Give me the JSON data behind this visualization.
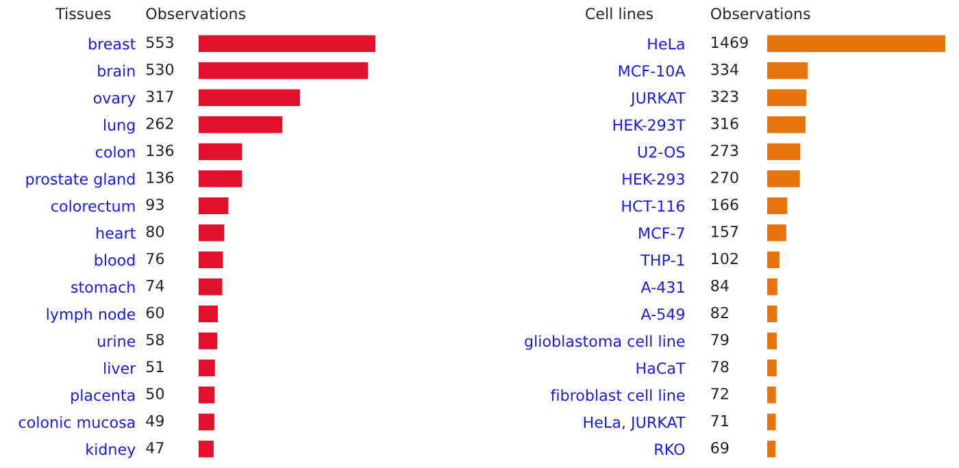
{
  "chart_data": [
    {
      "type": "bar",
      "orientation": "horizontal",
      "ylabel": "Tissues",
      "xlabel": "Observations",
      "data_labels": true,
      "color": "#e3102b",
      "categories": [
        "breast",
        "brain",
        "ovary",
        "lung",
        "colon",
        "prostate gland",
        "colorectum",
        "heart",
        "blood",
        "stomach",
        "lymph node",
        "urine",
        "liver",
        "placenta",
        "colonic mucosa",
        "kidney"
      ],
      "values": [
        553,
        530,
        317,
        262,
        136,
        136,
        93,
        80,
        76,
        74,
        60,
        58,
        51,
        50,
        49,
        47
      ]
    },
    {
      "type": "bar",
      "orientation": "horizontal",
      "ylabel": "Cell lines",
      "xlabel": "Observations",
      "data_labels": true,
      "color": "#e8740c",
      "categories": [
        "HeLa",
        "MCF-10A",
        "JURKAT",
        "HEK-293T",
        "U2-OS",
        "HEK-293",
        "HCT-116",
        "MCF-7",
        "THP-1",
        "A-431",
        "A-549",
        "glioblastoma cell line",
        "HaCaT",
        "fibroblast cell line",
        "HeLa, JURKAT",
        "RKO"
      ],
      "values": [
        1469,
        334,
        323,
        316,
        273,
        270,
        166,
        157,
        102,
        84,
        82,
        79,
        78,
        72,
        71,
        69
      ]
    }
  ]
}
